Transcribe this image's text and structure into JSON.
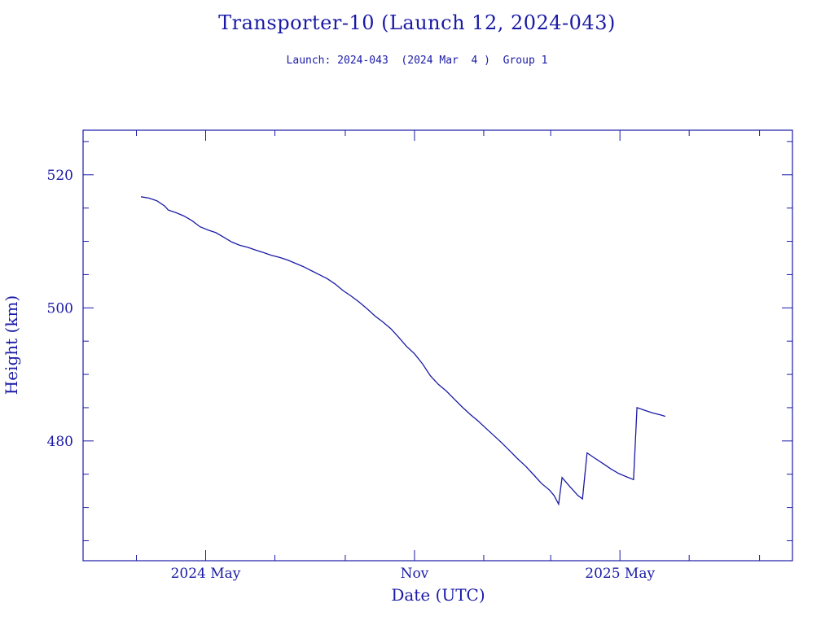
{
  "chart_data": {
    "type": "line",
    "title": "Transporter-10 (Launch 12, 2024-043)",
    "subtitle": "Launch: 2024-043  (2024 Mar  4 )  Group 1",
    "xlabel": "Date (UTC)",
    "ylabel": "Height (km)",
    "x_tick_labels": [
      {
        "date": "2024-05-01",
        "label": "2024 May"
      },
      {
        "date": "2024-11-01",
        "label": "Nov"
      },
      {
        "date": "2025-05-01",
        "label": "2025 May"
      }
    ],
    "x_minor_ticks": [
      "2024-03-01",
      "2024-07-01",
      "2024-09-01",
      "2025-01-01",
      "2025-03-01",
      "2025-07-01",
      "2025-09-01"
    ],
    "xlim": [
      "2024-01-14",
      "2025-09-30"
    ],
    "y_tick_labels": [
      480,
      500,
      520
    ],
    "y_minor_step": 5,
    "ylim": [
      462,
      526.7
    ],
    "series": [
      {
        "color": "#1a1aa6",
        "points": [
          [
            "2024-03-05",
            516.7
          ],
          [
            "2024-03-12",
            516.5
          ],
          [
            "2024-03-19",
            516.1
          ],
          [
            "2024-03-26",
            515.3
          ],
          [
            "2024-03-29",
            514.7
          ],
          [
            "2024-04-05",
            514.3
          ],
          [
            "2024-04-12",
            513.8
          ],
          [
            "2024-04-19",
            513.1
          ],
          [
            "2024-04-26",
            512.2
          ],
          [
            "2024-05-03",
            511.7
          ],
          [
            "2024-05-10",
            511.3
          ],
          [
            "2024-05-17",
            510.6
          ],
          [
            "2024-05-24",
            509.9
          ],
          [
            "2024-05-31",
            509.4
          ],
          [
            "2024-06-07",
            509.1
          ],
          [
            "2024-06-14",
            508.7
          ],
          [
            "2024-06-21",
            508.3
          ],
          [
            "2024-06-28",
            507.9
          ],
          [
            "2024-07-05",
            507.6
          ],
          [
            "2024-07-12",
            507.2
          ],
          [
            "2024-07-19",
            506.7
          ],
          [
            "2024-07-26",
            506.2
          ],
          [
            "2024-08-02",
            505.6
          ],
          [
            "2024-08-09",
            505.0
          ],
          [
            "2024-08-16",
            504.4
          ],
          [
            "2024-08-23",
            503.6
          ],
          [
            "2024-08-30",
            502.6
          ],
          [
            "2024-09-06",
            501.8
          ],
          [
            "2024-09-13",
            500.9
          ],
          [
            "2024-09-20",
            499.9
          ],
          [
            "2024-09-27",
            498.8
          ],
          [
            "2024-10-04",
            497.9
          ],
          [
            "2024-10-11",
            496.9
          ],
          [
            "2024-10-18",
            495.6
          ],
          [
            "2024-10-25",
            494.2
          ],
          [
            "2024-11-01",
            493.1
          ],
          [
            "2024-11-08",
            491.6
          ],
          [
            "2024-11-15",
            489.8
          ],
          [
            "2024-11-22",
            488.5
          ],
          [
            "2024-11-29",
            487.5
          ],
          [
            "2024-12-06",
            486.3
          ],
          [
            "2024-12-13",
            485.1
          ],
          [
            "2024-12-20",
            484.0
          ],
          [
            "2024-12-27",
            483.0
          ],
          [
            "2025-01-03",
            481.9
          ],
          [
            "2025-01-10",
            480.8
          ],
          [
            "2025-01-17",
            479.7
          ],
          [
            "2025-01-24",
            478.5
          ],
          [
            "2025-01-31",
            477.3
          ],
          [
            "2025-02-07",
            476.2
          ],
          [
            "2025-02-14",
            474.9
          ],
          [
            "2025-02-21",
            473.6
          ],
          [
            "2025-02-28",
            472.6
          ],
          [
            "2025-03-04",
            471.8
          ],
          [
            "2025-03-08",
            470.5
          ],
          [
            "2025-03-11",
            474.5
          ],
          [
            "2025-03-18",
            473.1
          ],
          [
            "2025-03-25",
            471.8
          ],
          [
            "2025-03-29",
            471.3
          ],
          [
            "2025-04-02",
            478.2
          ],
          [
            "2025-04-09",
            477.4
          ],
          [
            "2025-04-16",
            476.6
          ],
          [
            "2025-04-23",
            475.8
          ],
          [
            "2025-04-30",
            475.1
          ],
          [
            "2025-05-07",
            474.6
          ],
          [
            "2025-05-13",
            474.2
          ],
          [
            "2025-05-16",
            485.0
          ],
          [
            "2025-05-23",
            484.6
          ],
          [
            "2025-05-30",
            484.2
          ],
          [
            "2025-06-06",
            483.9
          ],
          [
            "2025-06-10",
            483.7
          ]
        ]
      }
    ]
  }
}
